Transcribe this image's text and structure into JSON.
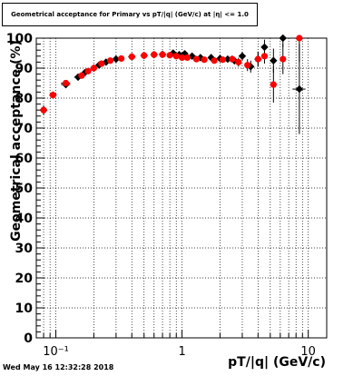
{
  "title": "Geometrical acceptance for Primary vs pT/|q| (GeV/c) at |η| <= 1.0",
  "timestamp": "Wed May 16 12:32:28 2018",
  "chart_data": {
    "type": "scatter",
    "title": "Geometrical acceptance for Primary vs pT/|q| (GeV/c) at |η| <= 1.0",
    "xlabel": "pT/|q| (GeV/c)",
    "ylabel": "Geometrical acceptance (%)",
    "xscale": "log",
    "xlim": [
      0.07,
      14
    ],
    "ylim": [
      0,
      100
    ],
    "grid": true,
    "xticks": [
      {
        "value": 0.1,
        "label": "10⁻¹"
      },
      {
        "value": 1,
        "label": "1"
      },
      {
        "value": 10,
        "label": "10"
      }
    ],
    "yticks": [
      0,
      10,
      20,
      30,
      40,
      50,
      60,
      70,
      80,
      90,
      100
    ],
    "series": [
      {
        "color": "#000000",
        "points": [
          {
            "x": 0.08,
            "y": 76,
            "xerr": 0.005,
            "yerr": 1.5
          },
          {
            "x": 0.095,
            "y": 81,
            "xerr": 0.006,
            "yerr": 1
          },
          {
            "x": 0.12,
            "y": 84.5,
            "xerr": 0.01,
            "yerr": 1
          },
          {
            "x": 0.15,
            "y": 87,
            "xerr": 0.01,
            "yerr": 0.8
          },
          {
            "x": 0.17,
            "y": 88.5,
            "xerr": 0.008,
            "yerr": 0.5
          },
          {
            "x": 0.2,
            "y": 90,
            "xerr": 0.01,
            "yerr": 0.5
          },
          {
            "x": 0.22,
            "y": 91,
            "xerr": 0.01,
            "yerr": 0.5
          },
          {
            "x": 0.25,
            "y": 92,
            "xerr": 0.01,
            "yerr": 0.5
          },
          {
            "x": 0.3,
            "y": 93,
            "xerr": 0.01,
            "yerr": 0.5
          },
          {
            "x": 0.4,
            "y": 93.8,
            "xerr": 0.01,
            "yerr": 0.5
          },
          {
            "x": 0.5,
            "y": 94.2,
            "xerr": 0.01,
            "yerr": 0.5
          },
          {
            "x": 0.6,
            "y": 94.5,
            "xerr": 0.01,
            "yerr": 0.5
          },
          {
            "x": 0.7,
            "y": 94.6,
            "xerr": 0.02,
            "yerr": 0.5
          },
          {
            "x": 0.85,
            "y": 95,
            "xerr": 0.02,
            "yerr": 0.5
          },
          {
            "x": 0.95,
            "y": 94.5,
            "xerr": 0.02,
            "yerr": 0.5
          },
          {
            "x": 1.05,
            "y": 94.8,
            "xerr": 0.03,
            "yerr": 0.5
          },
          {
            "x": 1.2,
            "y": 94,
            "xerr": 0.03,
            "yerr": 0.5
          },
          {
            "x": 1.4,
            "y": 93.5,
            "xerr": 0.04,
            "yerr": 0.5
          },
          {
            "x": 1.7,
            "y": 93.5,
            "xerr": 0.05,
            "yerr": 0.8
          },
          {
            "x": 2.0,
            "y": 93.2,
            "xerr": 0.05,
            "yerr": 0.8
          },
          {
            "x": 2.3,
            "y": 93,
            "xerr": 0.05,
            "yerr": 0.8
          },
          {
            "x": 2.6,
            "y": 92.5,
            "xerr": 0.07,
            "yerr": 1.2
          },
          {
            "x": 3.0,
            "y": 94,
            "xerr": 0.1,
            "yerr": 1.5
          },
          {
            "x": 3.5,
            "y": 90.5,
            "xerr": 0.2,
            "yerr": 2
          },
          {
            "x": 4.0,
            "y": 93,
            "xerr": 0.2,
            "yerr": 2.5
          },
          {
            "x": 4.5,
            "y": 97,
            "xerr": 0.2,
            "yerr": 2.5
          },
          {
            "x": 5.3,
            "y": 92.5,
            "xerr": 0.3,
            "yerr": 4
          },
          {
            "x": 6.3,
            "y": 100,
            "xerr": 0.3,
            "yerr": 3
          },
          {
            "x": 8.5,
            "y": 83,
            "xerr": 1.0,
            "yerr": 15
          }
        ]
      },
      {
        "color": "#ff0000",
        "points": [
          {
            "x": 0.08,
            "y": 76,
            "xerr": 0.005,
            "yerr": 1.5
          },
          {
            "x": 0.095,
            "y": 81,
            "xerr": 0.006,
            "yerr": 1
          },
          {
            "x": 0.12,
            "y": 85,
            "xerr": 0.01,
            "yerr": 1
          },
          {
            "x": 0.16,
            "y": 87.5,
            "xerr": 0.008,
            "yerr": 0.8
          },
          {
            "x": 0.18,
            "y": 89,
            "xerr": 0.008,
            "yerr": 0.5
          },
          {
            "x": 0.2,
            "y": 90,
            "xerr": 0.01,
            "yerr": 0.5
          },
          {
            "x": 0.23,
            "y": 91.5,
            "xerr": 0.01,
            "yerr": 0.5
          },
          {
            "x": 0.27,
            "y": 92.5,
            "xerr": 0.01,
            "yerr": 0.5
          },
          {
            "x": 0.33,
            "y": 93.2,
            "xerr": 0.01,
            "yerr": 0.5
          },
          {
            "x": 0.4,
            "y": 93.8,
            "xerr": 0.01,
            "yerr": 0.5
          },
          {
            "x": 0.5,
            "y": 94.2,
            "xerr": 0.01,
            "yerr": 0.5
          },
          {
            "x": 0.6,
            "y": 94.5,
            "xerr": 0.01,
            "yerr": 0.5
          },
          {
            "x": 0.7,
            "y": 94.5,
            "xerr": 0.02,
            "yerr": 0.5
          },
          {
            "x": 0.8,
            "y": 94.3,
            "xerr": 0.02,
            "yerr": 0.5
          },
          {
            "x": 0.9,
            "y": 94,
            "xerr": 0.02,
            "yerr": 0.5
          },
          {
            "x": 1.0,
            "y": 93.5,
            "xerr": 0.03,
            "yerr": 0.5
          },
          {
            "x": 1.1,
            "y": 93.5,
            "xerr": 0.03,
            "yerr": 0.5
          },
          {
            "x": 1.3,
            "y": 93,
            "xerr": 0.03,
            "yerr": 0.5
          },
          {
            "x": 1.5,
            "y": 92.8,
            "xerr": 0.04,
            "yerr": 0.6
          },
          {
            "x": 1.8,
            "y": 92.5,
            "xerr": 0.05,
            "yerr": 0.8
          },
          {
            "x": 2.1,
            "y": 92.8,
            "xerr": 0.05,
            "yerr": 0.8
          },
          {
            "x": 2.5,
            "y": 93,
            "xerr": 0.07,
            "yerr": 1.2
          },
          {
            "x": 2.8,
            "y": 92,
            "xerr": 0.1,
            "yerr": 1.5
          },
          {
            "x": 3.3,
            "y": 91,
            "xerr": 0.15,
            "yerr": 2
          },
          {
            "x": 4.0,
            "y": 93,
            "xerr": 0.2,
            "yerr": 2.5
          },
          {
            "x": 4.5,
            "y": 94,
            "xerr": 0.2,
            "yerr": 2.5
          },
          {
            "x": 5.3,
            "y": 84.5,
            "xerr": 0.3,
            "yerr": 6
          },
          {
            "x": 6.3,
            "y": 93,
            "xerr": 0.3,
            "yerr": 5
          },
          {
            "x": 8.5,
            "y": 100,
            "xerr": 1.0,
            "yerr": 8
          }
        ]
      }
    ]
  }
}
